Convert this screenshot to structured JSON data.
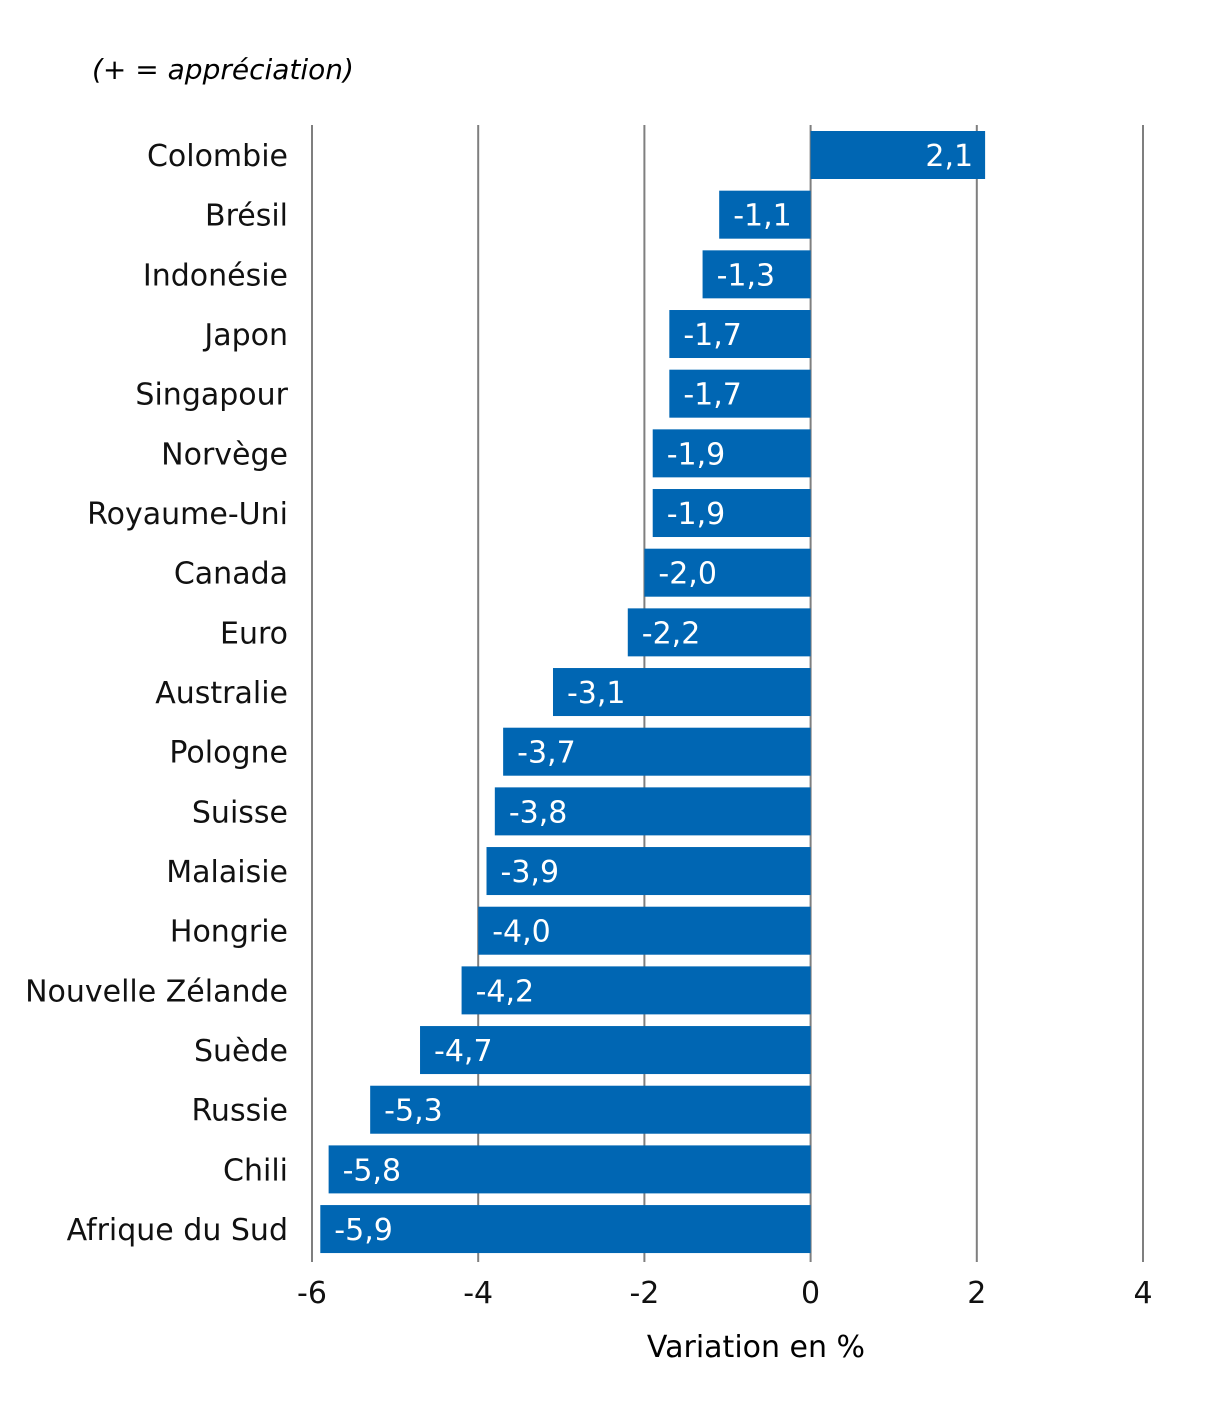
{
  "chart_data": {
    "type": "bar",
    "orientation": "horizontal",
    "annotation": "(+ = appréciation)",
    "xlabel": "Variation en %",
    "ylabel": "",
    "xlim": [
      -6,
      4
    ],
    "xticks": [
      -6,
      -4,
      -2,
      0,
      2,
      4
    ],
    "grid": true,
    "bar_color": "#0066B3",
    "grid_color": "#7f7f7f",
    "categories": [
      "Colombie",
      "Brésil",
      "Indonésie",
      "Japon",
      "Singapour",
      "Norvège",
      "Royaume-Uni",
      "Canada",
      "Euro",
      "Australie",
      "Pologne",
      "Suisse",
      "Malaisie",
      "Hongrie",
      "Nouvelle Zélande",
      "Suède",
      "Russie",
      "Chili",
      "Afrique du Sud"
    ],
    "values": [
      2.1,
      -1.1,
      -1.3,
      -1.7,
      -1.7,
      -1.9,
      -1.9,
      -2.0,
      -2.2,
      -3.1,
      -3.7,
      -3.8,
      -3.9,
      -4.0,
      -4.2,
      -4.7,
      -5.3,
      -5.8,
      -5.9
    ],
    "value_labels": [
      "2,1",
      "-1,1",
      "-1,3",
      "-1,7",
      "-1,7",
      "-1,9",
      "-1,9",
      "-2,0",
      "-2,2",
      "-3,1",
      "-3,7",
      "-3,8",
      "-3,9",
      "-4,0",
      "-4,2",
      "-4,7",
      "-5,3",
      "-5,8",
      "-5,9"
    ],
    "tick_labels": [
      "-6",
      "-4",
      "-2",
      "0",
      "2",
      "4"
    ]
  }
}
